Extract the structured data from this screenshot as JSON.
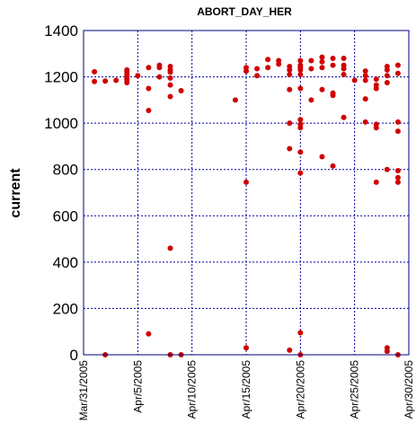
{
  "chart_data": {
    "type": "scatter",
    "title": "ABORT_DAY_HER",
    "xlabel": "",
    "ylabel": "current",
    "x_type": "date",
    "xlim": [
      "2005-03-31",
      "2005-04-30"
    ],
    "xticks": [
      "2005-03-31",
      "2005-04-05",
      "2005-04-10",
      "2005-04-15",
      "2005-04-20",
      "2005-04-25",
      "2005-04-30"
    ],
    "xtick_labels": [
      "Mar/31/2005",
      "Apr/5/2005",
      "Apr/10/2005",
      "Apr/15/2005",
      "Apr/20/2005",
      "Apr/25/2005",
      "Apr/30/2005"
    ],
    "ylim": [
      0,
      1400
    ],
    "yticks": [
      0,
      200,
      400,
      600,
      800,
      1000,
      1200,
      1400
    ],
    "grid": true,
    "colors": {
      "points": "#d00000",
      "frame": "#000080",
      "grid": "#0000a0",
      "background": "#ffffff"
    },
    "series": [
      {
        "points": [
          [
            "2005-04-01 00:00",
            1180
          ],
          [
            "2005-04-01 00:00",
            1222
          ],
          [
            "2005-04-02 00:00",
            1182
          ],
          [
            "2005-04-02 00:00",
            0
          ],
          [
            "2005-04-03 00:00",
            1185
          ],
          [
            "2005-04-04 00:00",
            1175
          ],
          [
            "2005-04-04 00:00",
            1188
          ],
          [
            "2005-04-04 00:00",
            1200
          ],
          [
            "2005-04-04 00:00",
            1210
          ],
          [
            "2005-04-04 00:00",
            1222
          ],
          [
            "2005-04-04 00:00",
            1230
          ],
          [
            "2005-04-05 00:00",
            1205
          ],
          [
            "2005-04-06 00:00",
            1240
          ],
          [
            "2005-04-06 00:00",
            1150
          ],
          [
            "2005-04-06 00:00",
            1055
          ],
          [
            "2005-04-06 00:00",
            90
          ],
          [
            "2005-04-07 00:00",
            1240
          ],
          [
            "2005-04-07 00:00",
            1250
          ],
          [
            "2005-04-07 00:00",
            1200
          ],
          [
            "2005-04-08 00:00",
            1245
          ],
          [
            "2005-04-08 00:00",
            1230
          ],
          [
            "2005-04-08 00:00",
            1220
          ],
          [
            "2005-04-08 00:00",
            1195
          ],
          [
            "2005-04-08 00:00",
            1165
          ],
          [
            "2005-04-08 00:00",
            1115
          ],
          [
            "2005-04-08 00:00",
            460
          ],
          [
            "2005-04-08 00:00",
            0
          ],
          [
            "2005-04-09 00:00",
            1140
          ],
          [
            "2005-04-09 00:00",
            0
          ],
          [
            "2005-04-14 00:00",
            1100
          ],
          [
            "2005-04-15 00:00",
            1240
          ],
          [
            "2005-04-15 00:00",
            1225
          ],
          [
            "2005-04-15 00:00",
            745
          ],
          [
            "2005-04-15 00:00",
            30
          ],
          [
            "2005-04-16 00:00",
            1235
          ],
          [
            "2005-04-16 00:00",
            1205
          ],
          [
            "2005-04-17 00:00",
            1275
          ],
          [
            "2005-04-17 00:00",
            1240
          ],
          [
            "2005-04-18 00:00",
            1270
          ],
          [
            "2005-04-18 00:00",
            1255
          ],
          [
            "2005-04-19 00:00",
            1245
          ],
          [
            "2005-04-19 00:00",
            1230
          ],
          [
            "2005-04-19 00:00",
            1210
          ],
          [
            "2005-04-19 00:00",
            1145
          ],
          [
            "2005-04-19 00:00",
            1000
          ],
          [
            "2005-04-19 00:00",
            890
          ],
          [
            "2005-04-19 00:00",
            20
          ],
          [
            "2005-04-20 00:00",
            1270
          ],
          [
            "2005-04-20 00:00",
            1250
          ],
          [
            "2005-04-20 00:00",
            1240
          ],
          [
            "2005-04-20 00:00",
            1230
          ],
          [
            "2005-04-20 00:00",
            1210
          ],
          [
            "2005-04-20 00:00",
            1150
          ],
          [
            "2005-04-20 00:00",
            1015
          ],
          [
            "2005-04-20 00:00",
            995
          ],
          [
            "2005-04-20 00:00",
            980
          ],
          [
            "2005-04-20 00:00",
            875
          ],
          [
            "2005-04-20 00:00",
            785
          ],
          [
            "2005-04-20 00:00",
            95
          ],
          [
            "2005-04-20 00:00",
            0
          ],
          [
            "2005-04-21 00:00",
            1270
          ],
          [
            "2005-04-21 00:00",
            1235
          ],
          [
            "2005-04-21 00:00",
            1100
          ],
          [
            "2005-04-22 00:00",
            1285
          ],
          [
            "2005-04-22 00:00",
            1265
          ],
          [
            "2005-04-22 00:00",
            1240
          ],
          [
            "2005-04-22 00:00",
            1145
          ],
          [
            "2005-04-22 00:00",
            855
          ],
          [
            "2005-04-23 00:00",
            1280
          ],
          [
            "2005-04-23 00:00",
            1250
          ],
          [
            "2005-04-23 00:00",
            1130
          ],
          [
            "2005-04-23 00:00",
            1120
          ],
          [
            "2005-04-23 00:00",
            815
          ],
          [
            "2005-04-24 00:00",
            1280
          ],
          [
            "2005-04-24 00:00",
            1250
          ],
          [
            "2005-04-24 00:00",
            1235
          ],
          [
            "2005-04-24 00:00",
            1210
          ],
          [
            "2005-04-24 00:00",
            1025
          ],
          [
            "2005-04-25 00:00",
            1185
          ],
          [
            "2005-04-26 00:00",
            1225
          ],
          [
            "2005-04-26 00:00",
            1205
          ],
          [
            "2005-04-26 00:00",
            1185
          ],
          [
            "2005-04-26 00:00",
            1105
          ],
          [
            "2005-04-26 00:00",
            1005
          ],
          [
            "2005-04-27 00:00",
            1190
          ],
          [
            "2005-04-27 00:00",
            1165
          ],
          [
            "2005-04-27 00:00",
            1150
          ],
          [
            "2005-04-27 00:00",
            995
          ],
          [
            "2005-04-27 00:00",
            980
          ],
          [
            "2005-04-27 00:00",
            745
          ],
          [
            "2005-04-28 00:00",
            1245
          ],
          [
            "2005-04-28 00:00",
            1230
          ],
          [
            "2005-04-28 00:00",
            1205
          ],
          [
            "2005-04-28 00:00",
            1175
          ],
          [
            "2005-04-28 00:00",
            800
          ],
          [
            "2005-04-28 00:00",
            30
          ],
          [
            "2005-04-28 00:00",
            15
          ],
          [
            "2005-04-29 00:00",
            1250
          ],
          [
            "2005-04-29 00:00",
            1215
          ],
          [
            "2005-04-29 00:00",
            1005
          ],
          [
            "2005-04-29 00:00",
            965
          ],
          [
            "2005-04-29 00:00",
            795
          ],
          [
            "2005-04-29 00:00",
            765
          ],
          [
            "2005-04-29 00:00",
            745
          ],
          [
            "2005-04-29 00:00",
            0
          ]
        ]
      }
    ]
  }
}
